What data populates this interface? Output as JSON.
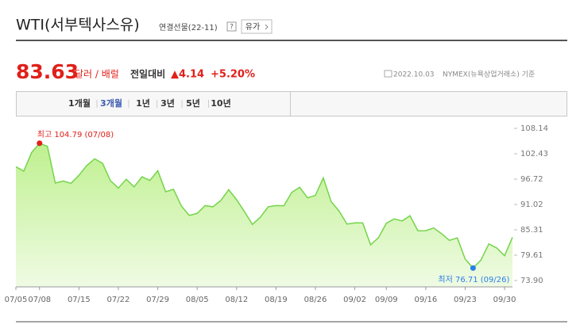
{
  "header": {
    "title": "WTI(서부텍사스유)",
    "subtitle": "연결선물(22-11)",
    "help": "?",
    "button": "유가"
  },
  "quote": {
    "price": "83.63",
    "unit": "달러 / 배럴",
    "change_label": "전일대비",
    "change": "▲4.14",
    "change_pct": "+5.20%",
    "date": "2022.10.03",
    "exchange": "NYMEX(뉴욕상업거래소) 기준"
  },
  "tabs": [
    "1개월",
    "3개월",
    "1년",
    "3년",
    "5년",
    "10년"
  ],
  "selected_tab": 1,
  "chart_data": {
    "type": "area",
    "categories": [
      "07/05",
      null,
      null,
      "07/08",
      null,
      null,
      null,
      null,
      "07/15",
      null,
      null,
      null,
      null,
      "07/22",
      null,
      null,
      null,
      null,
      "07/29",
      null,
      null,
      null,
      null,
      "08/05",
      null,
      null,
      null,
      null,
      "08/12",
      null,
      null,
      null,
      null,
      "08/19",
      null,
      null,
      null,
      null,
      "08/26",
      null,
      null,
      null,
      null,
      "09/02",
      null,
      null,
      null,
      "09/09",
      null,
      null,
      null,
      null,
      "09/16",
      null,
      null,
      null,
      null,
      "09/23",
      null,
      null,
      null,
      null,
      "09/30",
      null
    ],
    "values": [
      99.5,
      98.53,
      102.73,
      104.79,
      104.09,
      95.84,
      96.3,
      95.78,
      97.59,
      99.8,
      101.3,
      100.26,
      96.35,
      94.7,
      96.7,
      94.98,
      97.26,
      96.42,
      98.62,
      93.89,
      94.42,
      90.66,
      88.54,
      89.01,
      90.76,
      90.5,
      91.93,
      94.34,
      92.09,
      89.41,
      86.53,
      88.11,
      90.5,
      90.77,
      90.73,
      93.74,
      94.89,
      92.52,
      93.06,
      97.01,
      91.64,
      89.55,
      86.61,
      86.87,
      86.88,
      81.94,
      83.54,
      86.79,
      87.78,
      87.31,
      88.48,
      85.1,
      85.11,
      85.73,
      84.45,
      82.94,
      83.49,
      78.74,
      76.71,
      78.5,
      82.15,
      81.23,
      79.49,
      83.63
    ],
    "color": "#74d44a",
    "ylim": [
      73.9,
      108.14
    ],
    "yticks": [
      {
        "value": 73.9,
        "label": "73.90"
      },
      {
        "value": 79.61,
        "label": "79.61"
      },
      {
        "value": 85.31,
        "label": "85.31"
      },
      {
        "value": 91.02,
        "label": "91.02"
      },
      {
        "value": 96.72,
        "label": "96.72"
      },
      {
        "value": 102.43,
        "label": "102.43"
      },
      {
        "value": 108.14,
        "label": "108.14"
      }
    ],
    "max_label": "최고 104.79 (07/08)",
    "min_label": "최저 76.71 (09/26)",
    "max_color": "#e0201a",
    "min_color": "#2a7ee8"
  }
}
